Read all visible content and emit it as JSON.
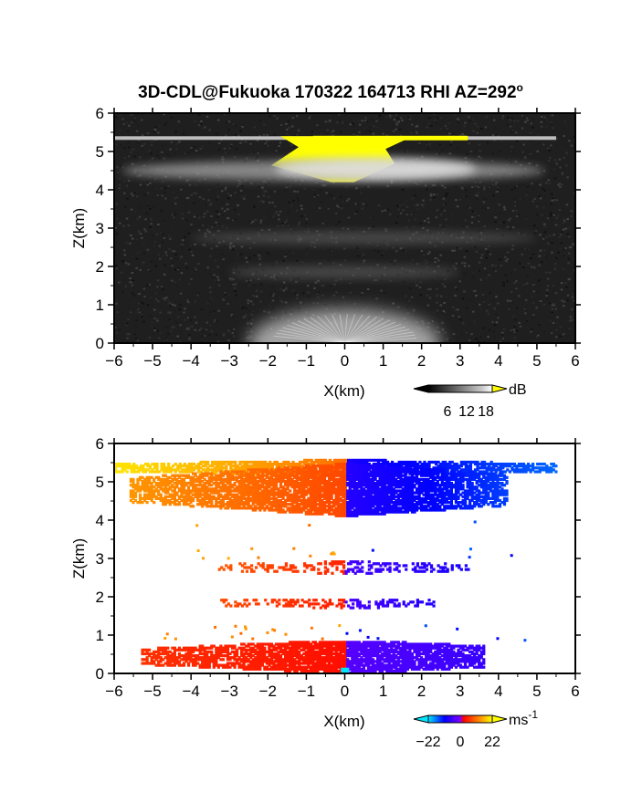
{
  "title": "3D-CDL@Fukuoka 170322 164713 RHI AZ=292",
  "title_sup": "o",
  "chart_data": [
    {
      "type": "heatmap",
      "quantity": "backscatter intensity",
      "xlabel": "X(km)",
      "ylabel": "Z(km)",
      "xlim": [
        -6,
        6
      ],
      "ylim": [
        0,
        6
      ],
      "x_ticks": [
        -6,
        -5,
        -4,
        -3,
        -2,
        -1,
        0,
        1,
        2,
        3,
        4,
        5,
        6
      ],
      "y_ticks": [
        0,
        1,
        2,
        3,
        4,
        5,
        6
      ],
      "colorbar": {
        "unit": "dB",
        "ticks": [
          6,
          12,
          18
        ],
        "range": [
          0,
          20
        ],
        "colormap": "grayscale to white, yellow above max"
      },
      "features": [
        {
          "name": "thin layer",
          "z_km": 5.35,
          "x_range": [
            -6,
            5.5
          ],
          "level_db": 16
        },
        {
          "name": "saturated core",
          "z_range_km": [
            4.2,
            5.4
          ],
          "x_range": [
            -1.2,
            1.3
          ],
          "level_db": 20
        },
        {
          "name": "bright layer",
          "z_km": 4.5,
          "x_range": [
            -5.8,
            5.2
          ],
          "level_db": 11
        },
        {
          "name": "faint layer",
          "z_km": 2.75,
          "x_range": [
            -4,
            5
          ],
          "level_db": 5
        },
        {
          "name": "faint layer",
          "z_km": 1.85,
          "x_range": [
            -3,
            3
          ],
          "level_db": 5
        },
        {
          "name": "near-ground fan",
          "z_range_km": [
            0,
            0.9
          ],
          "x_range": [
            -2.5,
            2.5
          ],
          "level_db": 14
        }
      ]
    },
    {
      "type": "heatmap",
      "quantity": "Doppler velocity",
      "xlabel": "X(km)",
      "ylabel": "Z(km)",
      "xlim": [
        -6,
        6
      ],
      "ylim": [
        0,
        6
      ],
      "x_ticks": [
        -6,
        -5,
        -4,
        -3,
        -2,
        -1,
        0,
        1,
        2,
        3,
        4,
        5,
        6
      ],
      "y_ticks": [
        0,
        1,
        2,
        3,
        4,
        5,
        6
      ],
      "colorbar": {
        "unit": "ms",
        "unit_sup": "-1",
        "ticks": [
          -22,
          0,
          22
        ],
        "range": [
          -22,
          22
        ],
        "colormap": "cyan-blue-red-orange-yellow"
      },
      "regions": [
        {
          "z_range_km": [
            5.15,
            5.55
          ],
          "x_range": [
            -6,
            5.5
          ],
          "velocity_at_left": 20,
          "velocity_at_right": -16,
          "density": "full"
        },
        {
          "z_range_km": [
            4.1,
            5.45
          ],
          "x_range": [
            -5.6,
            4.2
          ],
          "velocity_at_left": 14,
          "velocity_at_right": -14,
          "density": "full"
        },
        {
          "z_range_km": [
            2.6,
            2.9
          ],
          "x_range": [
            -3.3,
            3.3
          ],
          "velocity_at_left": 9,
          "velocity_at_right": -9,
          "density": "sparse"
        },
        {
          "z_range_km": [
            1.7,
            1.95
          ],
          "x_range": [
            -3.3,
            2.3
          ],
          "velocity_at_left": 8,
          "velocity_at_right": -8,
          "density": "sparse"
        },
        {
          "z_range_km": [
            0,
            0.85
          ],
          "x_range": [
            -5.3,
            3.6
          ],
          "velocity_at_left": 6,
          "velocity_at_right": -6,
          "density": "full"
        }
      ]
    }
  ]
}
